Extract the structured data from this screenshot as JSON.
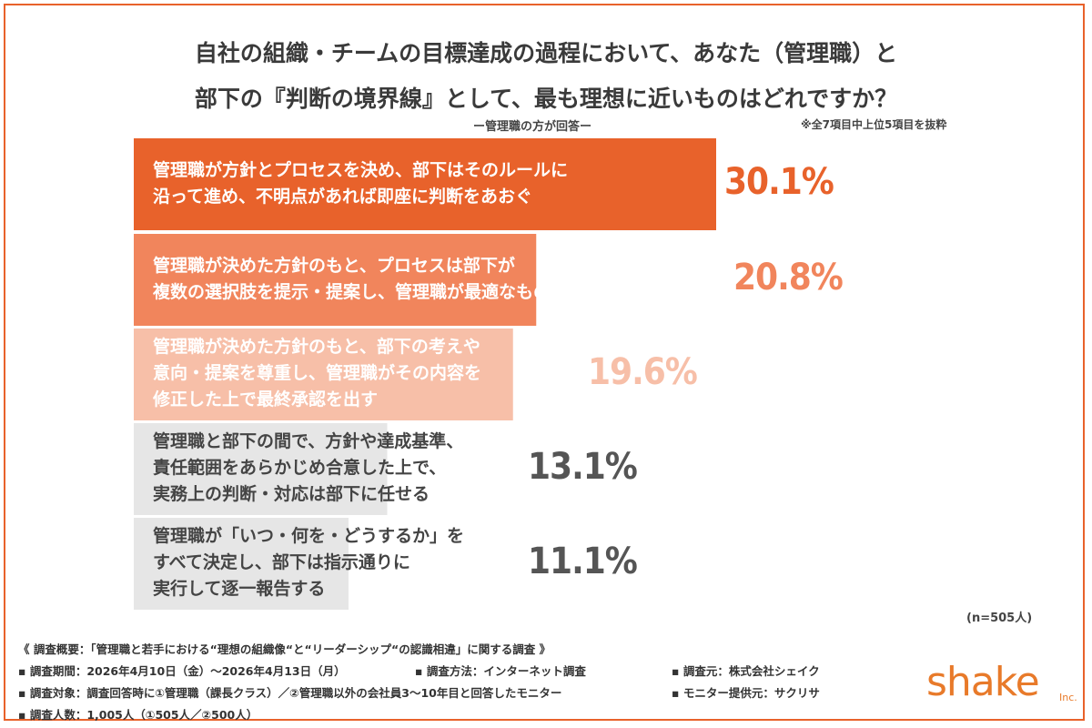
{
  "title_line1": "自社の組織・チームの目標達成の過程において、あなた（管理職）と",
  "title_line2": "部下の『判断の境界線』として、最も理想に近いものはどれですか？",
  "subtitle": "ー管理職の方が回答ー",
  "note": "※全7項目中上位5項目を抜粋",
  "n_label": "(n=505人)",
  "chart_data": {
    "type": "bar",
    "orientation": "horizontal",
    "categories": [
      "管理職が方針とプロセスを決め、部下はそのルールに\n沿って進め、不明点があれば即座に判断をあおぐ",
      "管理職が決めた方針のもと、プロセスは部下が\n複数の選択肢を提示・提案し、管理職が最適なものを選ぶ",
      "管理職が決めた方針のもと、部下の考えや\n意向・提案を尊重し、管理職がその内容を\n修正した上で最終承認を出す",
      "管理職と部下の間で、方針や達成基準、\n責任範囲をあらかじめ合意した上で、\n実務上の判断・対応は部下に任せる",
      "管理職が「いつ・何を・どうするか」を\nすべて決定し、部下は指示通りに\n実行して逐一報告する"
    ],
    "values": [
      30.1,
      20.8,
      19.6,
      13.1,
      11.1
    ],
    "value_labels": [
      "30.1%",
      "20.8%",
      "19.6%",
      "13.1%",
      "11.1%"
    ],
    "bar_colors": [
      "#e8622b",
      "#f1855c",
      "#f7bfa8",
      "#e6e6e6",
      "#e6e6e6"
    ],
    "label_colors": [
      "#ffffff",
      "#ffffff",
      "#ffffff",
      "#444444",
      "#444444"
    ],
    "value_colors": [
      "#e8622b",
      "#f1855c",
      "#f7bfa8",
      "#555555",
      "#555555"
    ],
    "xlim": [
      0,
      30.1
    ]
  },
  "footer": {
    "line1": "《 調査概要：「管理職と若手における“理想の組織像“と“リーダーシップ“の認識相違」に関する調査 》",
    "period": "▪ 調査期間：2026年4月10日（金）〜2026年4月13日（月）",
    "method": "▪ 調査方法：インターネット調査",
    "source": "▪ 調査元：株式会社シェイク",
    "target": "▪ 調査対象：調査回答時に①管理職（課長クラス）／②管理職以外の会社員3〜10年目と回答したモニター",
    "provider": "▪ モニター提供元：サクリサ",
    "count": "▪ 調査人数：1,005人（①505人／②500人）"
  },
  "logo": "shake",
  "logo_suffix": "Inc."
}
